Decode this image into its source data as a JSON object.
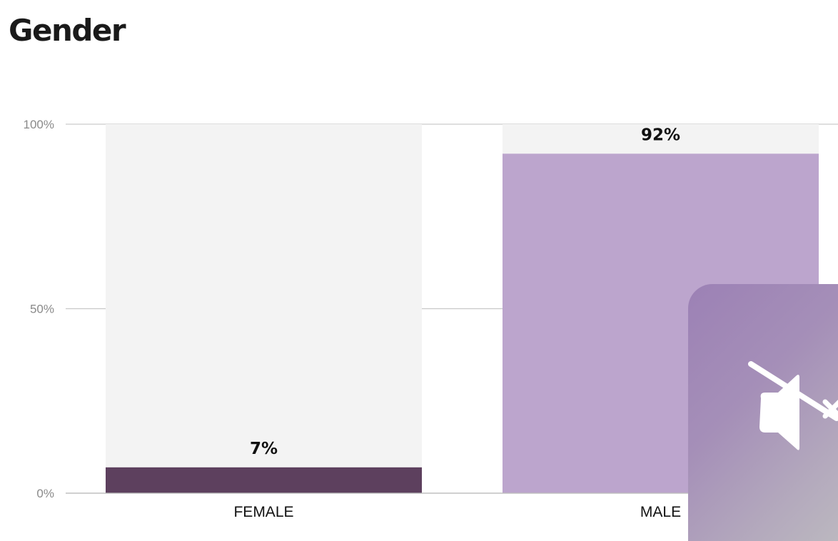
{
  "title": "Gender",
  "chart_data": {
    "type": "bar",
    "categories": [
      "FEMALE",
      "MALE"
    ],
    "values": [
      7,
      92
    ],
    "value_labels": [
      "7%",
      "92%"
    ],
    "bar_colors": [
      "#5d405e",
      "#bca5cd"
    ],
    "track_color": "#f3f3f3",
    "ylim": [
      0,
      100
    ],
    "yticks": [
      0,
      50,
      100
    ],
    "ytick_labels": [
      "0%",
      "50%",
      "100%"
    ],
    "grid": true,
    "xlabel": "",
    "ylabel": ""
  },
  "overlay": {
    "icon": "speaker-muted-icon"
  }
}
